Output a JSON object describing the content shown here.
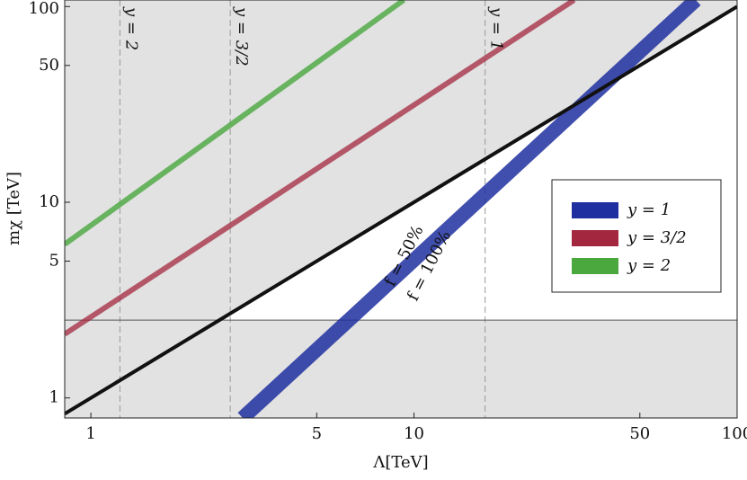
{
  "chart_data": {
    "type": "line",
    "xlabel": "Λ[TeV]",
    "ylabel": "mχ [TeV]",
    "xscale": "log",
    "yscale": "log",
    "xlim": [
      0.83,
      100
    ],
    "ylim": [
      0.79,
      108
    ],
    "xticks": [
      1,
      5,
      10,
      50,
      100
    ],
    "yticks": [
      1,
      5,
      10,
      50,
      100
    ],
    "series": [
      {
        "name": "y = 1",
        "color": "#1f2f9f",
        "x": [
          2.95,
          74.5
        ],
        "values": [
          0.79,
          108
        ]
      },
      {
        "name": "y = 3/2",
        "color": "#a3283f",
        "x": [
          0.83,
          31.3
        ],
        "values": [
          2.12,
          108
        ]
      },
      {
        "name": "y = 2",
        "color": "#4aa83e",
        "x": [
          0.83,
          9.3
        ],
        "values": [
          6.1,
          108
        ]
      },
      {
        "color": "#111111",
        "x": [
          0.83,
          100
        ],
        "values": [
          0.83,
          100
        ]
      }
    ],
    "vlines": [
      {
        "x": 1.23,
        "label": "y = 2"
      },
      {
        "x": 2.7,
        "label": "y = 3/2"
      },
      {
        "x": 16.6,
        "label": "y = 1"
      }
    ],
    "hline": 2.5,
    "annotations": [
      "f = 50%",
      "f = 100%"
    ],
    "legend": "right"
  }
}
